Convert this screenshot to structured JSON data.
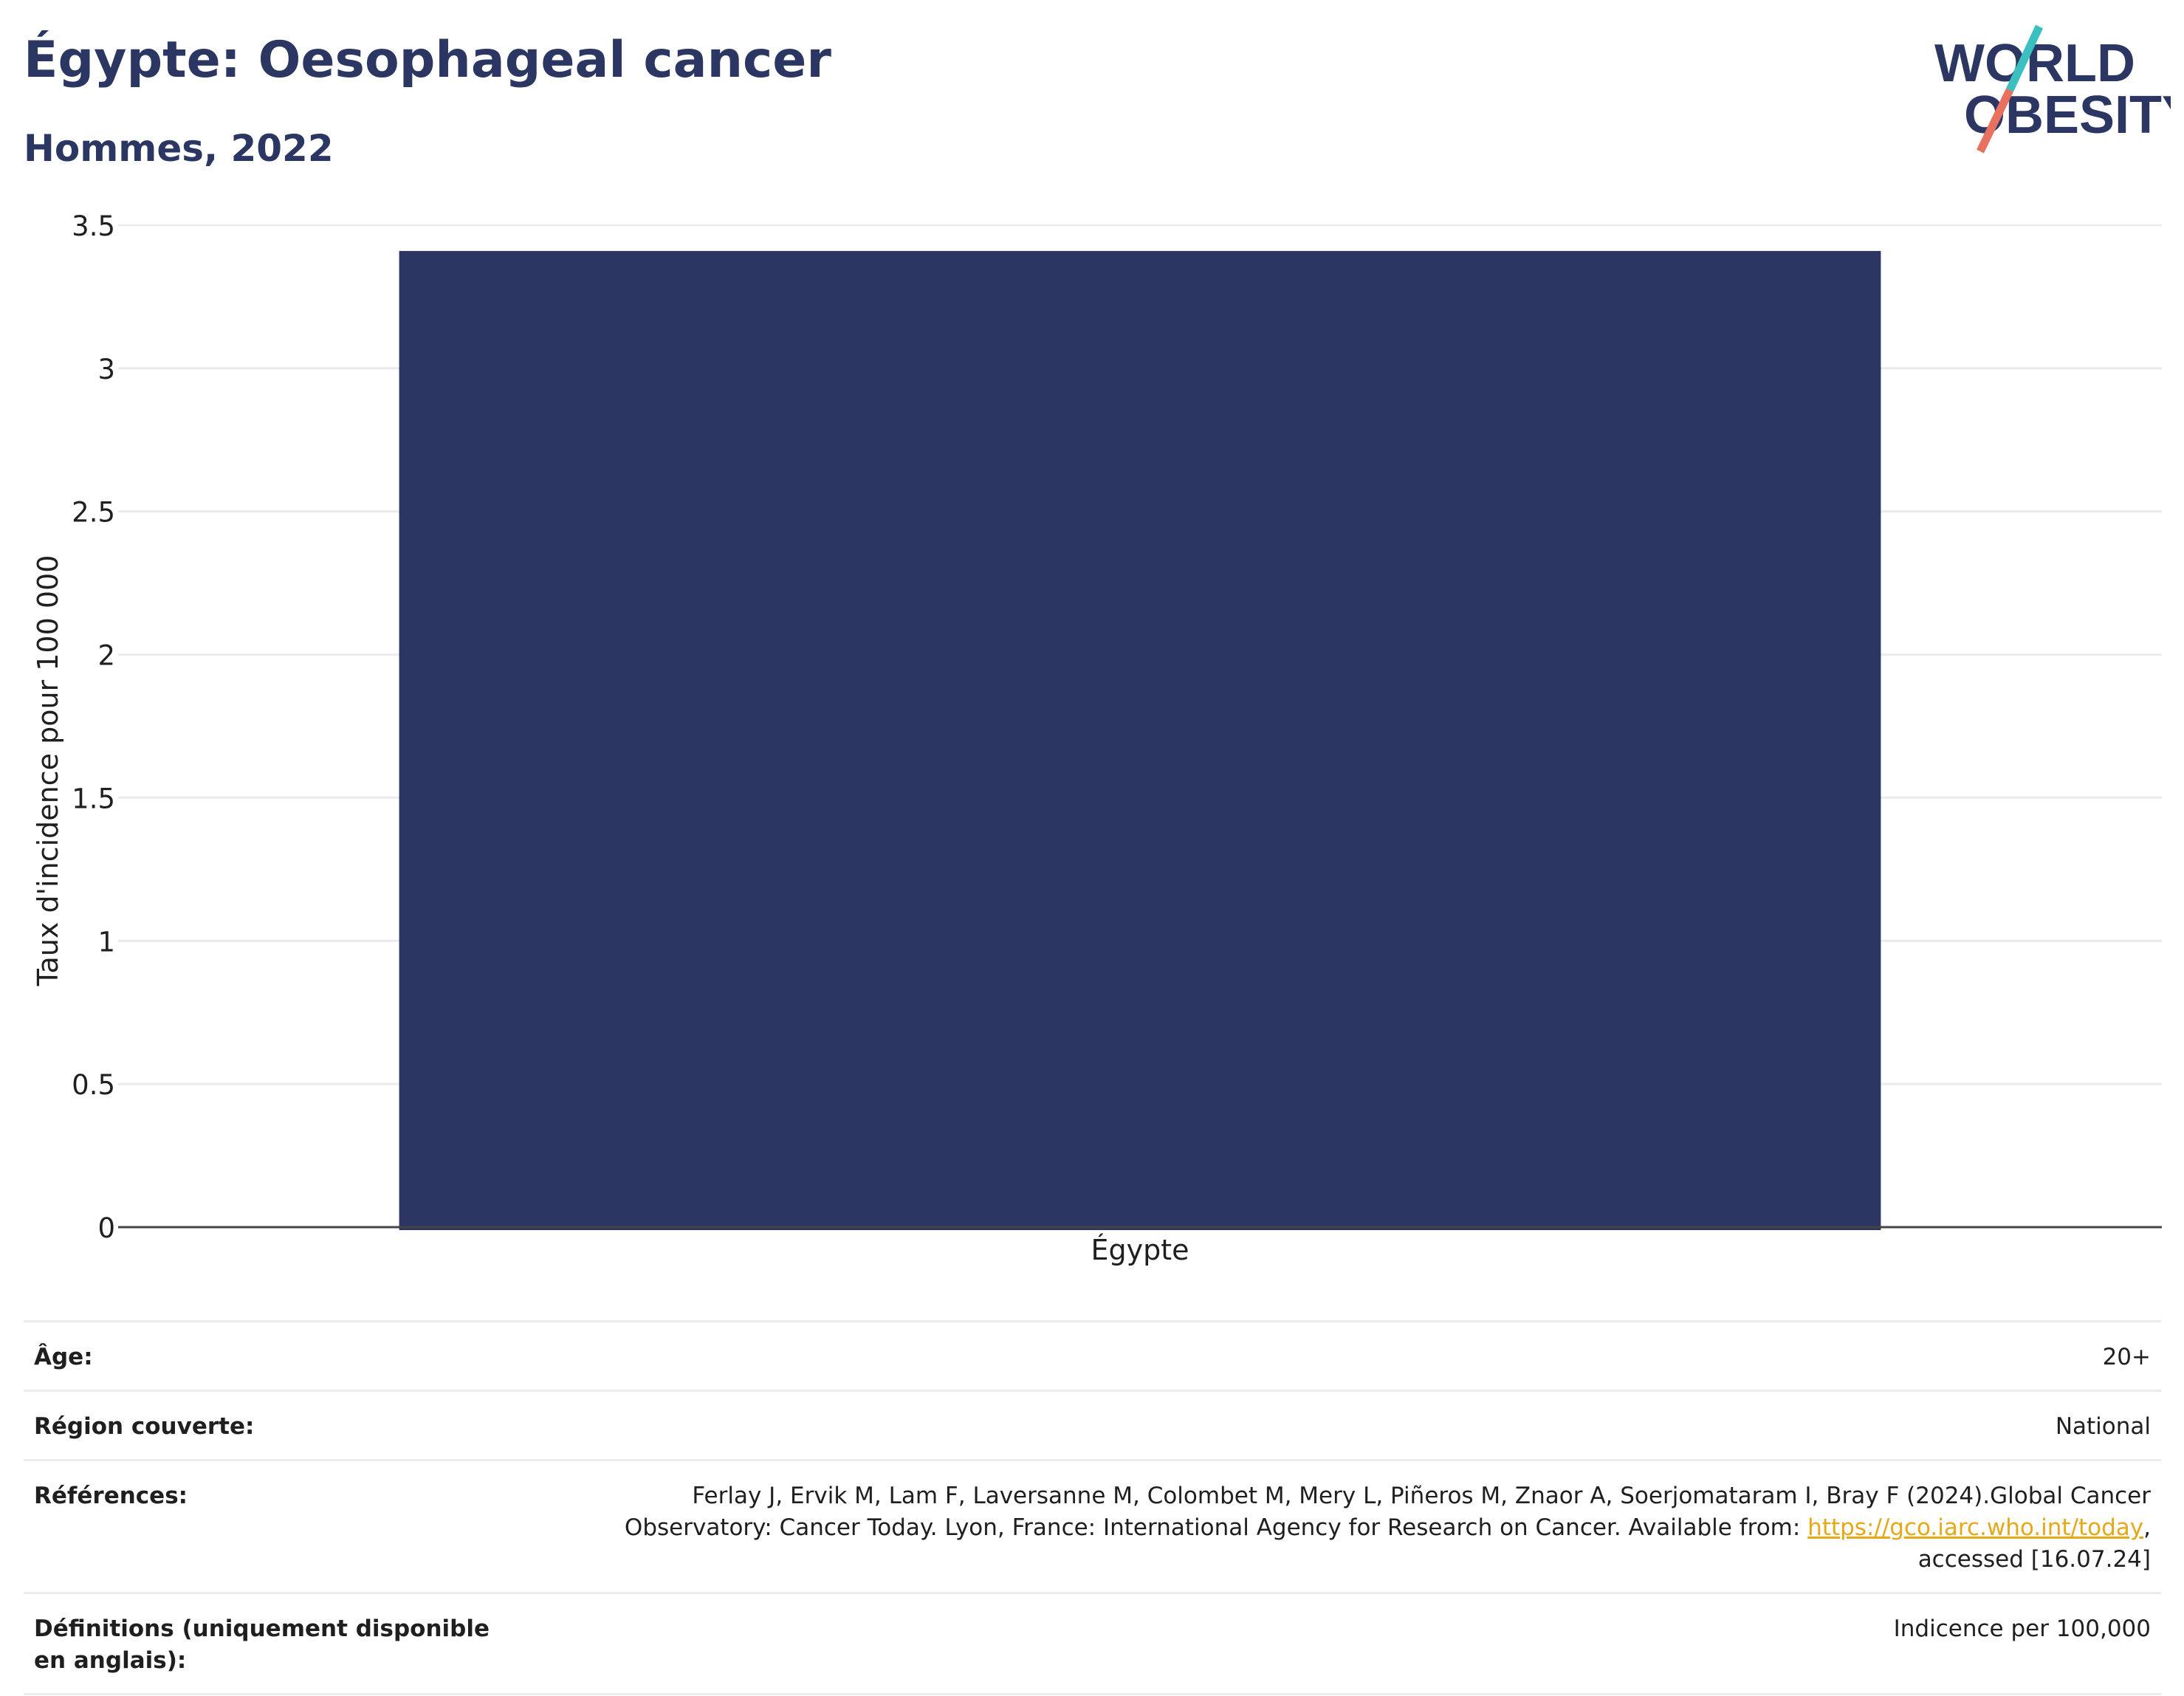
{
  "header": {
    "title": "Égypte: Oesophageal cancer",
    "subtitle": "Hommes, 2022"
  },
  "logo": {
    "line1": "WORLD",
    "line2": "OBESITY",
    "colors": {
      "text": "#2b3762",
      "slash_top": "#3bbfc1",
      "slash_bottom": "#e8705f"
    }
  },
  "chart_data": {
    "type": "bar",
    "categories": [
      "Égypte"
    ],
    "values": [
      3.41
    ],
    "ylabel": "Taux d'incidence pour 100 000",
    "xlabel": "",
    "ylim": [
      0,
      3.5
    ],
    "yticks": [
      0,
      0.5,
      1,
      1.5,
      2,
      2.5,
      3,
      3.5
    ],
    "ytick_labels": [
      "0",
      "0.5",
      "1",
      "1.5",
      "2",
      "2.5",
      "3",
      "3.5"
    ],
    "grid": true,
    "legend": false,
    "bar_color": "#2b3762"
  },
  "meta": {
    "age_label": "Âge:",
    "age_value": "20+",
    "region_label": "Région couverte:",
    "region_value": "National",
    "references_label": "Références:",
    "references_text_1": "Ferlay J, Ervik M, Lam F, Laversanne M, Colombet M, Mery L, Piñeros M, Znaor A, Soerjomataram I, Bray F (2024).Global Cancer Observatory: Cancer Today. Lyon, France: International Agency for Research on Cancer. Available from: ",
    "references_link": "https://gco.iarc.who.int/today",
    "references_text_2": ", accessed [16.07.24]",
    "definitions_label": "Définitions (uniquement disponible en anglais):",
    "definitions_value": "Indicence per 100,000"
  }
}
